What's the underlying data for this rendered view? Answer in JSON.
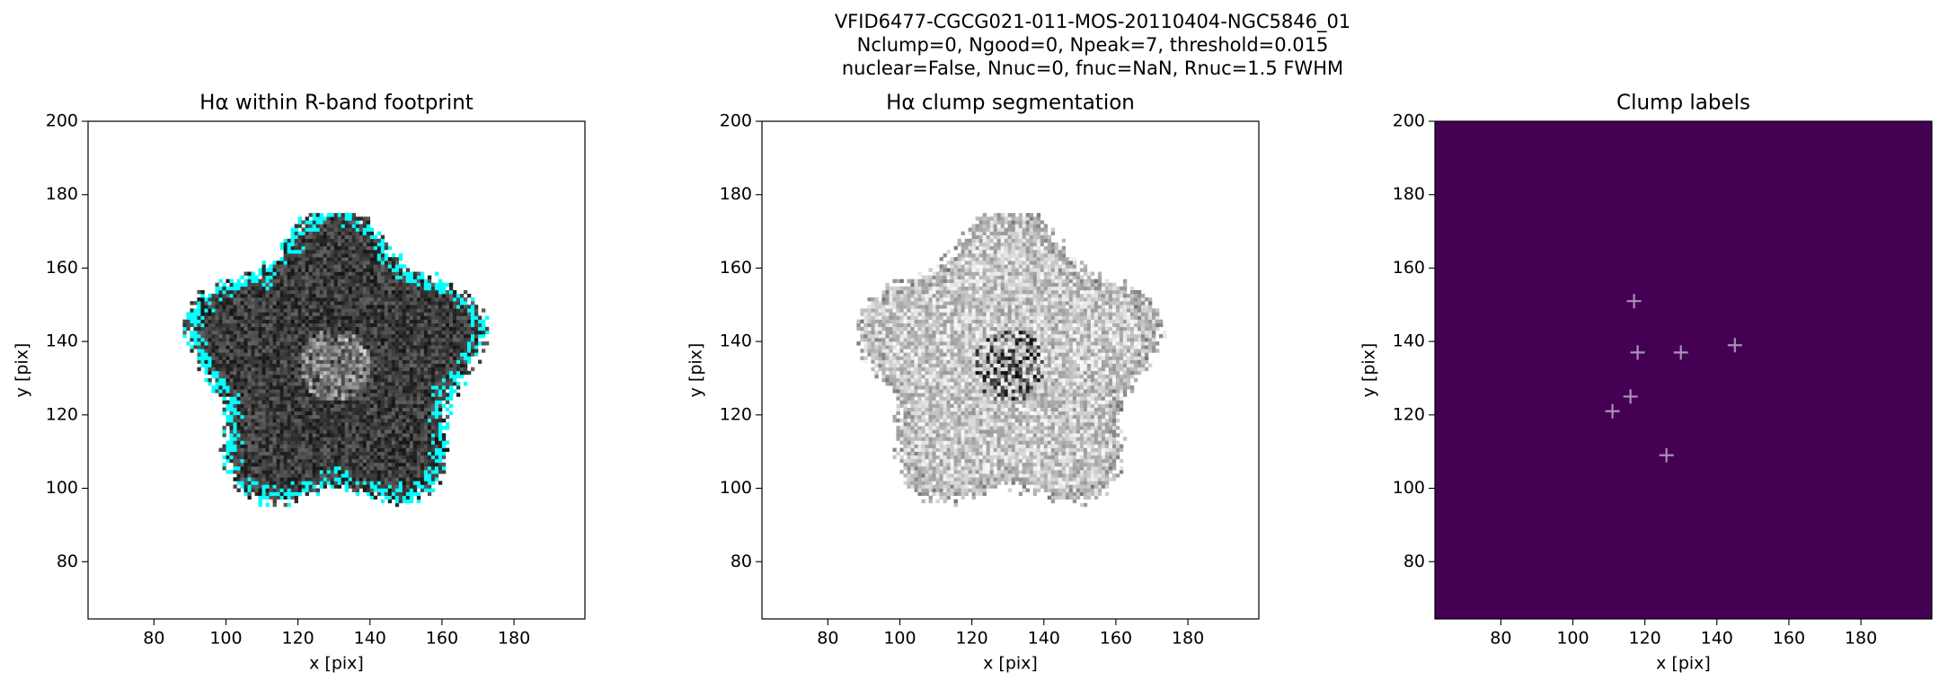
{
  "figure_title": [
    "VFID6477-CGCG021-011-MOS-20110404-NGC5846_01",
    "Nclump=0, Ngood=0, Npeak=7, threshold=0.015",
    "nuclear=False, Nnuc=0, fnuc=NaN, Rnuc=1.5 FWHM"
  ],
  "chart_data": [
    {
      "type": "image",
      "style": "footprint",
      "title": "Hα within R-band footprint",
      "xlabel": "x [pix]",
      "ylabel": "y [pix]",
      "xlim": [
        61.7,
        199.7
      ],
      "ylim": [
        64.4,
        200
      ],
      "xticks": [
        80,
        100,
        120,
        140,
        160,
        180
      ],
      "yticks": [
        80,
        100,
        120,
        140,
        160,
        180,
        200
      ],
      "contour_color": "#00ffff"
    },
    {
      "type": "image",
      "style": "segmentation",
      "title": "Hα clump segmentation",
      "xlabel": "x [pix]",
      "ylabel": "y [pix]",
      "xlim": [
        61.7,
        199.7
      ],
      "ylim": [
        64.4,
        200
      ],
      "xticks": [
        80,
        100,
        120,
        140,
        160,
        180
      ],
      "yticks": [
        80,
        100,
        120,
        140,
        160,
        180,
        200
      ]
    },
    {
      "type": "labels",
      "title": "Clump labels",
      "xlabel": "x [pix]",
      "ylabel": "y [pix]",
      "xlim": [
        61.7,
        199.7
      ],
      "ylim": [
        64.4,
        200
      ],
      "xticks": [
        80,
        100,
        120,
        140,
        160,
        180
      ],
      "yticks": [
        80,
        100,
        120,
        140,
        160,
        180,
        200
      ],
      "background": "#440154",
      "marker_color": "#a890b8",
      "x": [
        117,
        118,
        130,
        145,
        116,
        111,
        126
      ],
      "y": [
        151,
        137,
        137,
        139,
        125,
        121,
        109
      ]
    }
  ]
}
